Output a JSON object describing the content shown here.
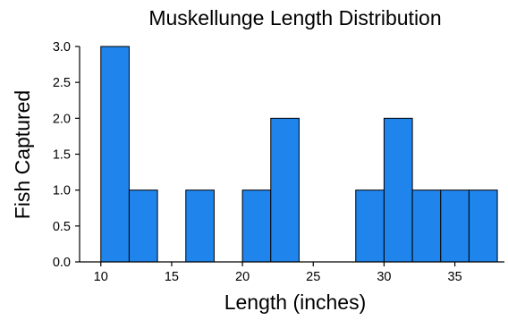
{
  "chart_data": {
    "type": "bar",
    "title": "Muskellunge Length Distribution",
    "xlabel": "Length (inches)",
    "ylabel": "Fish Captured",
    "xlim": [
      8.5,
      38.5
    ],
    "ylim": [
      0,
      3
    ],
    "xticks": [
      "10",
      "15",
      "20",
      "25",
      "30",
      "35"
    ],
    "yticks": [
      "0.0",
      "0.5",
      "1.0",
      "1.5",
      "2.0",
      "2.5",
      "3.0"
    ],
    "bin_width": 2,
    "bins": [
      {
        "start": 10,
        "end": 12,
        "count": 3
      },
      {
        "start": 12,
        "end": 14,
        "count": 1
      },
      {
        "start": 16,
        "end": 18,
        "count": 1
      },
      {
        "start": 20,
        "end": 22,
        "count": 1
      },
      {
        "start": 22,
        "end": 24,
        "count": 2
      },
      {
        "start": 28,
        "end": 30,
        "count": 1
      },
      {
        "start": 30,
        "end": 32,
        "count": 2
      },
      {
        "start": 32,
        "end": 34,
        "count": 1
      },
      {
        "start": 34,
        "end": 36,
        "count": 1
      },
      {
        "start": 36,
        "end": 38,
        "count": 1
      }
    ],
    "bar_color": "#1f84eb",
    "grid": false,
    "legend": "none"
  }
}
